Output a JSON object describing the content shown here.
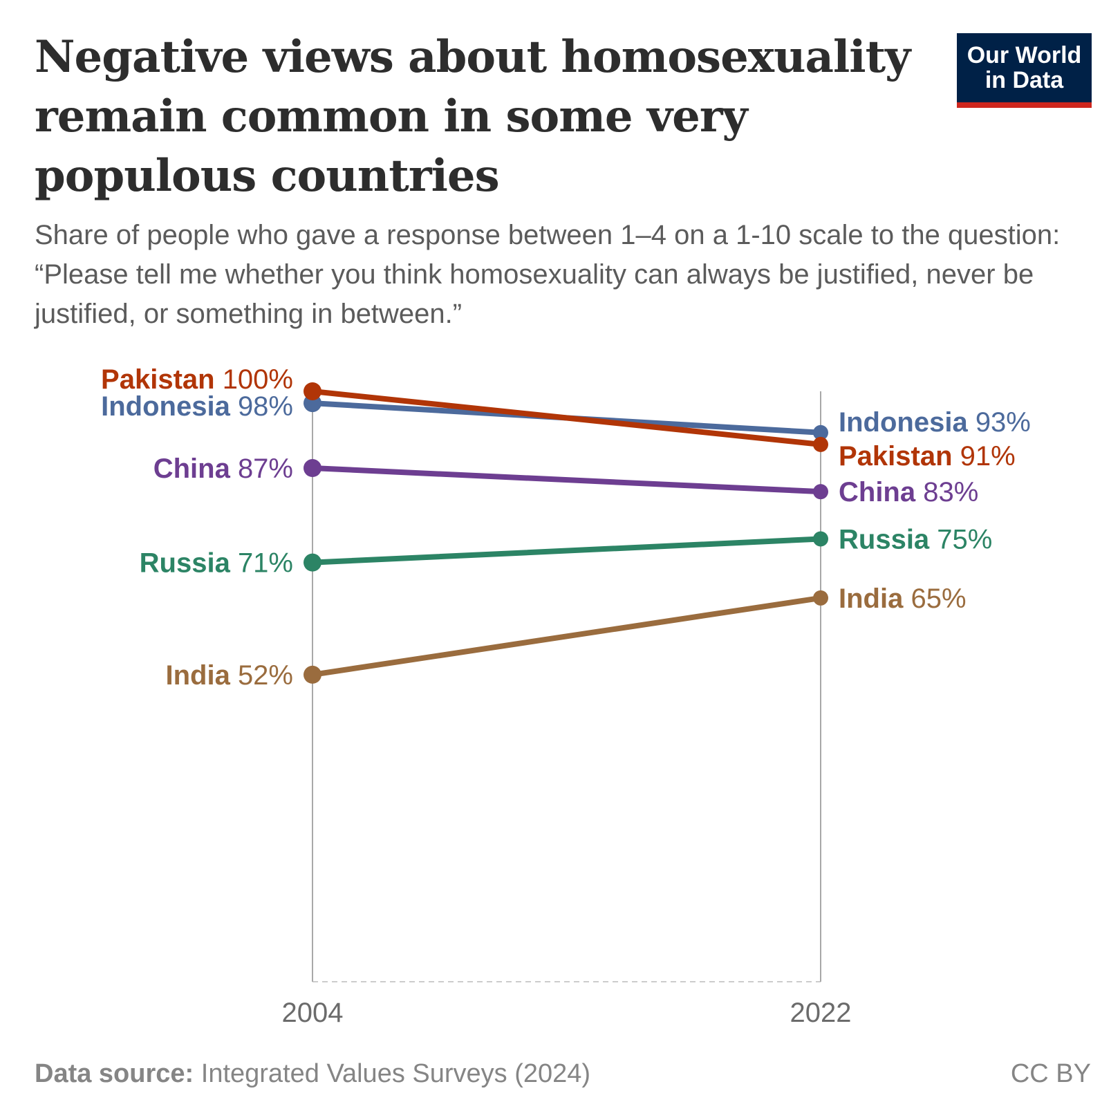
{
  "title": "Negative views about homosexuality remain common in some very populous countries",
  "subtitle": "Share of people who gave a response between 1–4 on a 1-10 scale to the question: “Please tell me whether you think homosexuality can always be justified, never be justified, or something in between.”",
  "logo": "Our World in Data",
  "footer": {
    "source_label": "Data source:",
    "source": "Integrated Values Surveys (2024)",
    "license": "CC BY"
  },
  "chart_data": {
    "type": "line",
    "subtype": "slope",
    "x": [
      "2004",
      "2022"
    ],
    "ylim": [
      0,
      100
    ],
    "unit": "%",
    "grid": false,
    "legend": "inline labels",
    "series": [
      {
        "name": "Pakistan",
        "values": [
          100,
          91
        ],
        "color": "#b13507"
      },
      {
        "name": "Indonesia",
        "values": [
          98,
          93
        ],
        "color": "#4c6a9c"
      },
      {
        "name": "China",
        "values": [
          87,
          83
        ],
        "color": "#6d3e91"
      },
      {
        "name": "Russia",
        "values": [
          71,
          75
        ],
        "color": "#2c8465"
      },
      {
        "name": "India",
        "values": [
          52,
          65
        ],
        "color": "#9a6c3e"
      }
    ]
  }
}
